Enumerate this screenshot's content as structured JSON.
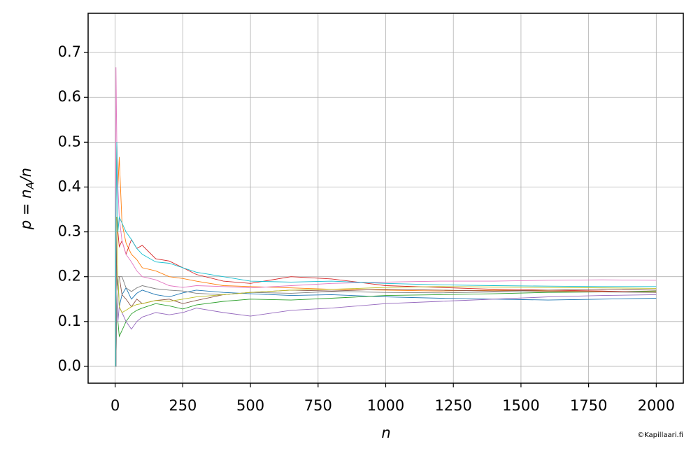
{
  "chart_data": {
    "type": "line",
    "xlabel": "n",
    "ylabel": [
      "p = n",
      "A",
      "/n"
    ],
    "watermark": "©Kapillaari.fi",
    "x": [
      1,
      3,
      6,
      10,
      15,
      25,
      40,
      60,
      80,
      100,
      150,
      200,
      250,
      300,
      400,
      500,
      650,
      800,
      1000,
      1200,
      1400,
      1600,
      1800,
      2000
    ],
    "series": [
      {
        "color": "#1f77b4",
        "values": [
          0,
          0.333,
          0.167,
          0.2,
          0.133,
          0.16,
          0.175,
          0.15,
          0.163,
          0.17,
          0.16,
          0.155,
          0.164,
          0.17,
          0.165,
          0.162,
          0.158,
          0.16,
          0.155,
          0.152,
          0.15,
          0.148,
          0.15,
          0.152
        ]
      },
      {
        "color": "#ff7f0e",
        "values": [
          0,
          0.333,
          0.5,
          0.4,
          0.467,
          0.32,
          0.275,
          0.25,
          0.238,
          0.22,
          0.213,
          0.2,
          0.196,
          0.19,
          0.18,
          0.178,
          0.175,
          0.172,
          0.17,
          0.168,
          0.17,
          0.168,
          0.167,
          0.166
        ]
      },
      {
        "color": "#2ca02c",
        "values": [
          0,
          0,
          0.167,
          0.1,
          0.067,
          0.08,
          0.1,
          0.117,
          0.125,
          0.13,
          0.14,
          0.135,
          0.128,
          0.137,
          0.145,
          0.15,
          0.148,
          0.152,
          0.158,
          0.16,
          0.162,
          0.165,
          0.166,
          0.168
        ]
      },
      {
        "color": "#d62728",
        "values": [
          0,
          0.333,
          0.333,
          0.3,
          0.267,
          0.28,
          0.25,
          0.283,
          0.263,
          0.27,
          0.24,
          0.235,
          0.22,
          0.205,
          0.19,
          0.185,
          0.2,
          0.195,
          0.18,
          0.176,
          0.172,
          0.17,
          0.168,
          0.165
        ]
      },
      {
        "color": "#9467bd",
        "values": [
          0,
          0,
          0.167,
          0.1,
          0.133,
          0.12,
          0.1,
          0.083,
          0.1,
          0.11,
          0.12,
          0.115,
          0.12,
          0.13,
          0.12,
          0.112,
          0.125,
          0.13,
          0.14,
          0.145,
          0.15,
          0.155,
          0.158,
          0.16
        ]
      },
      {
        "color": "#8c564b",
        "values": [
          0,
          0.333,
          0.167,
          0.2,
          0.2,
          0.16,
          0.15,
          0.133,
          0.15,
          0.14,
          0.147,
          0.15,
          0.14,
          0.147,
          0.16,
          0.165,
          0.17,
          0.168,
          0.172,
          0.17,
          0.168,
          0.17,
          0.172,
          0.17
        ]
      },
      {
        "color": "#e377c2",
        "values": [
          0,
          0.667,
          0.5,
          0.4,
          0.333,
          0.28,
          0.25,
          0.233,
          0.213,
          0.2,
          0.193,
          0.18,
          0.176,
          0.18,
          0.178,
          0.175,
          0.18,
          0.185,
          0.188,
          0.19,
          0.19,
          0.192,
          0.193,
          0.192
        ]
      },
      {
        "color": "#7f7f7f",
        "values": [
          0,
          0,
          0.167,
          0.2,
          0.2,
          0.2,
          0.175,
          0.167,
          0.175,
          0.18,
          0.173,
          0.17,
          0.168,
          0.163,
          0.16,
          0.165,
          0.163,
          0.167,
          0.165,
          0.164,
          0.166,
          0.167,
          0.166,
          0.165
        ]
      },
      {
        "color": "#bcbd22",
        "values": [
          0,
          0.333,
          0.333,
          0.2,
          0.133,
          0.12,
          0.125,
          0.133,
          0.138,
          0.14,
          0.147,
          0.145,
          0.15,
          0.155,
          0.16,
          0.165,
          0.17,
          0.172,
          0.176,
          0.178,
          0.177,
          0.176,
          0.175,
          0.174
        ]
      },
      {
        "color": "#17becf",
        "values": [
          0,
          0.333,
          0.5,
          0.3,
          0.333,
          0.32,
          0.3,
          0.283,
          0.263,
          0.25,
          0.233,
          0.23,
          0.22,
          0.21,
          0.2,
          0.19,
          0.188,
          0.19,
          0.185,
          0.182,
          0.18,
          0.179,
          0.178,
          0.178
        ]
      }
    ],
    "xlim": [
      -100,
      2100
    ],
    "xticks": [
      0,
      250,
      500,
      750,
      1000,
      1250,
      1500,
      1750,
      2000
    ],
    "ylim": [
      -0.0375,
      0.7875
    ],
    "yticks": [
      {
        "value": 0,
        "label": "0.0"
      },
      0.1,
      0.2,
      0.3,
      0.4,
      0.5,
      0.6,
      0.7
    ],
    "grid": true
  }
}
